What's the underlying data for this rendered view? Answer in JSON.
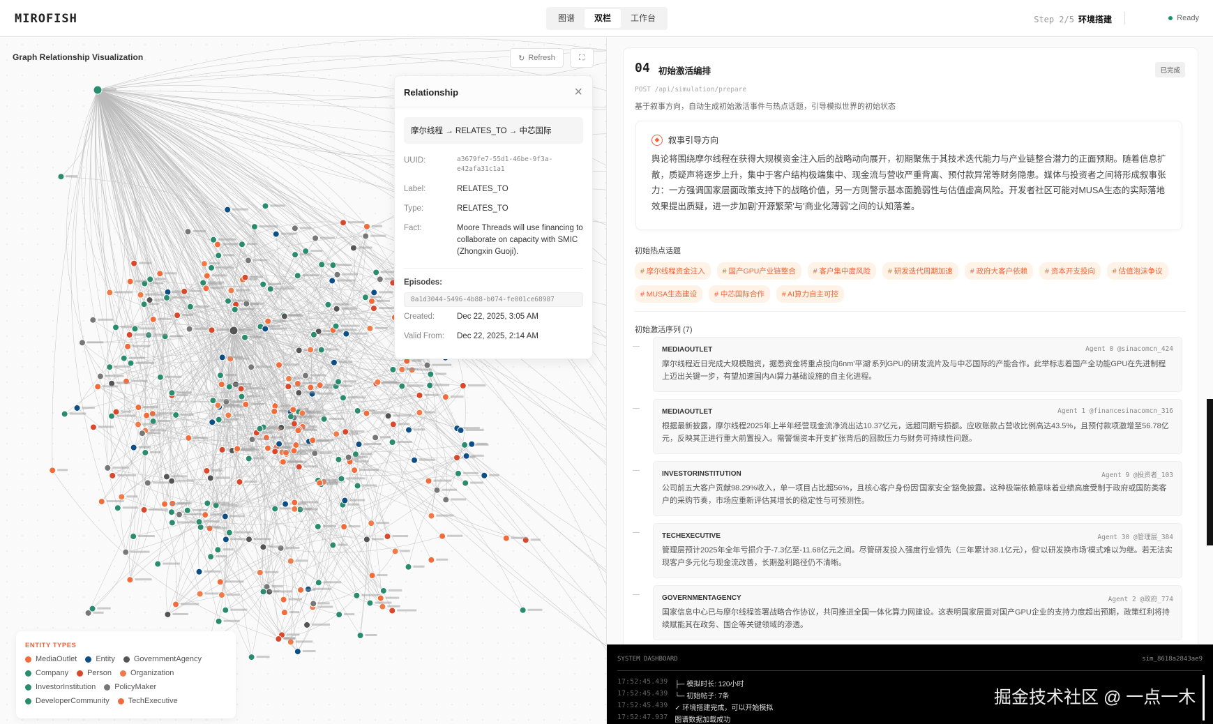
{
  "header": {
    "logo": "MIROFISH",
    "views": [
      "图谱",
      "双栏",
      "工作台"
    ],
    "active_view": "双栏",
    "step": "Step 2/5",
    "step_name": "环境搭建",
    "status": "Ready"
  },
  "graph": {
    "title": "Graph Relationship Visualization",
    "refresh_label": "Refresh",
    "refresh_icon": "refresh-icon",
    "fullscreen_icon": "fullscreen-icon"
  },
  "relationship": {
    "title": "Relationship",
    "path": "摩尔线程 → RELATES_TO → 中芯国际",
    "uuid_label": "UUID:",
    "uuid": "a3679fe7-55d1-46be-9f3a-e42afa31c1a1",
    "label_label": "Label:",
    "label": "RELATES_TO",
    "type_label": "Type:",
    "type": "RELATES_TO",
    "fact_label": "Fact:",
    "fact": "Moore Threads will use financing to collaborate on capacity with SMIC (Zhongxin Guoji).",
    "episodes_label": "Episodes:",
    "episode": "8a1d3044-5496-4b88-b074-fe001ce68987",
    "created_label": "Created:",
    "created": "Dec 22, 2025, 3:05 AM",
    "valid_label": "Valid From:",
    "valid_from": "Dec 22, 2025, 2:14 AM"
  },
  "legend": {
    "title": "ENTITY TYPES",
    "items": [
      {
        "label": "MediaOutlet",
        "color": "#F26B3A"
      },
      {
        "label": "Entity",
        "color": "#0B4F86"
      },
      {
        "label": "GovernmentAgency",
        "color": "#555555"
      },
      {
        "label": "Company",
        "color": "#2A8C6E"
      },
      {
        "label": "Person",
        "color": "#D9482B"
      },
      {
        "label": "Organization",
        "color": "#F07A48"
      },
      {
        "label": "InvestorInstitution",
        "color": "#2A8C6E"
      },
      {
        "label": "PolicyMaker",
        "color": "#777777"
      },
      {
        "label": "DeveloperCommunity",
        "color": "#2A8C6E"
      },
      {
        "label": "TechExecutive",
        "color": "#F26B3A"
      }
    ]
  },
  "panel": {
    "step_num": "04",
    "title": "初始激活编排",
    "status": "已完成",
    "api": "POST /api/simulation/prepare",
    "desc": "基于叙事方向，自动生成初始激活事件与热点话题，引导模拟世界的初始状态",
    "narrative_title": "叙事引导方向",
    "narrative": "舆论将围绕摩尔线程在获得大规模资金注入后的战略动向展开，初期聚焦于其技术迭代能力与产业链整合潜力的正面预期。随着信息扩散，质疑声将逐步上升，集中于客户结构极端集中、现金流与营收严重背离、预付款异常等财务隐患。媒体与投资者之间将形成叙事张力：一方强调国家层面政策支持下的战略价值，另一方则警示基本面脆弱性与估值虚高风险。开发者社区可能对MUSA生态的实际落地效果提出质疑，进一步加剧'开源繁荣'与'商业化薄弱'之间的认知落差。",
    "hot_label": "初始热点话题",
    "tags": [
      "# 摩尔线程资金注入",
      "# 国产GPU产业链整合",
      "# 客户集中度风险",
      "# 研发迭代周期加速",
      "# 政府大客户依赖",
      "# 资本开支投向",
      "# 估值泡沫争议",
      "# MUSA生态建设",
      "# 中芯国际合作",
      "# AI算力自主可控"
    ],
    "seq_label": "初始激活序列 (7)",
    "sequence": [
      {
        "type": "MEDIAOUTLET",
        "agent": "Agent 0 @sinacomcn_424",
        "text": "摩尔线程近日完成大规模融资，据悉资金将重点投向6nm'平湖'系列GPU的研发流片及与中芯国际的产能合作。此举标志着国产全功能GPU在先进制程上迈出关键一步，有望加速国内AI算力基础设施的自主化进程。"
      },
      {
        "type": "MEDIAOUTLET",
        "agent": "Agent 1 @financesinacomcn_316",
        "text": "根据最新披露，摩尔线程2025年上半年经营现金流净流出达10.37亿元，远超同期亏损额。应收账款占营收比例高达43.5%，且预付款项激增至56.78亿元，反映其正进行重大前置投入。需警惕资本开支扩张背后的回款压力与财务可持续性问题。"
      },
      {
        "type": "INVESTORINSTITUTION",
        "agent": "Agent 9 @投资者_103",
        "text": "公司前五大客户贡献98.29%收入，单一项目占比超56%，且核心客户身份因'国家安全'豁免披露。这种极端依赖意味着业绩高度受制于政府或国防类客户的采购节奏，市场应重新评估其增长的稳定性与可预测性。"
      },
      {
        "type": "TECHEXECUTIVE",
        "agent": "Agent 30 @管理层_384",
        "text": "管理层预计2025年全年亏损介于-7.3亿至-11.68亿元之间。尽管研发投入强度行业领先（三年累计38.1亿元），但'以研发换市场'模式难以为继。若无法实现客户多元化与现金流改善，长期盈利路径仍不清晰。"
      },
      {
        "type": "GOVERNMENTAGENCY",
        "agent": "Agent 2 @政府_774",
        "text": "国家信息中心已与摩尔线程签署战略合作协议，共同推进全国一体化算力网建设。这表明国家层面对国产GPU企业的支持力度超出预期，政策红利将持续赋能其在政务、国企等关键领域的渗透。"
      }
    ]
  },
  "dashboard": {
    "title": "SYSTEM DASHBOARD",
    "sim_id": "sim_8618a2843ae9",
    "logs": [
      {
        "time": "17:52:45.439",
        "msg": "├─ 模拟时长: 120小时"
      },
      {
        "time": "17:52:45.439",
        "msg": "└─ 初始帖子: 7条"
      },
      {
        "time": "17:52:45.439",
        "msg": "✓ 环境搭建完成，可以开始模拟"
      },
      {
        "time": "17:52:47.937",
        "msg": "图谱数据加载成功"
      }
    ],
    "watermark": "掘金技术社区 @ 一点一木"
  },
  "colors": {
    "accent": "#E8663A",
    "ready": "#1A936F",
    "tag_bg": "#FFF3E8"
  }
}
